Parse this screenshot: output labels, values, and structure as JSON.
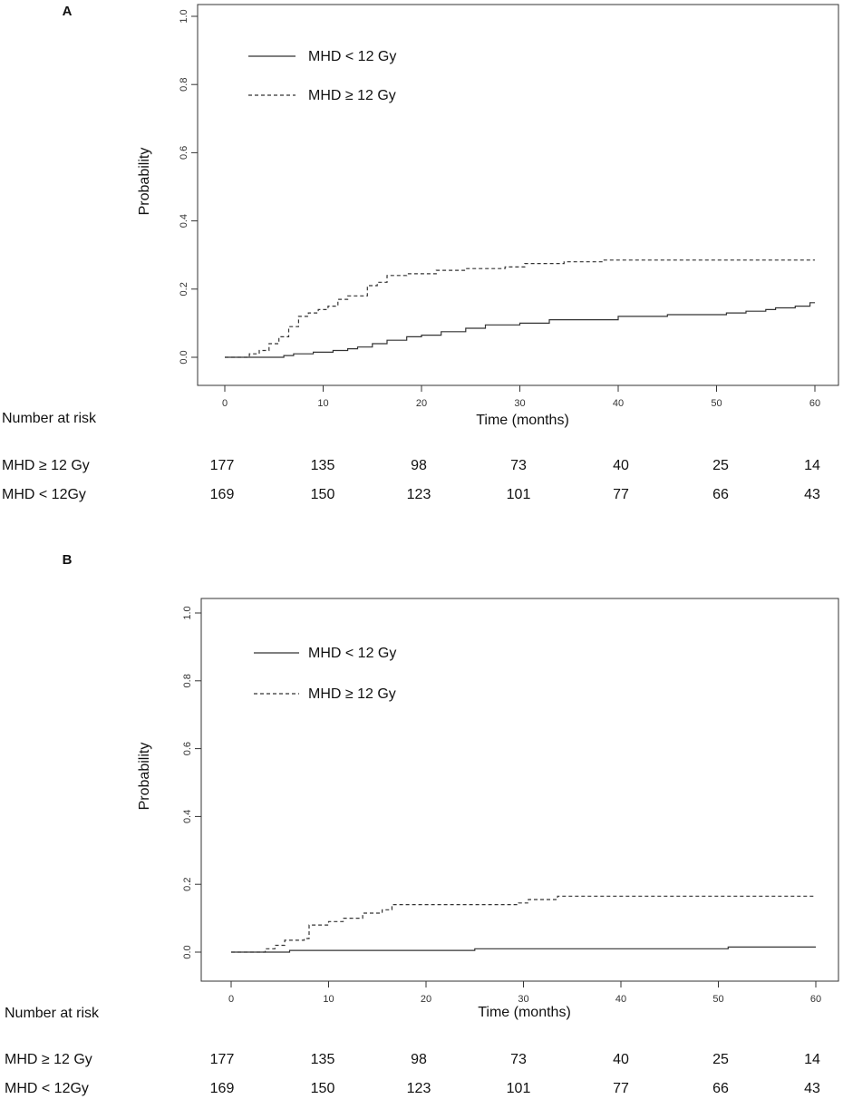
{
  "chart_data": [
    {
      "type": "line",
      "panel_label": "A",
      "xlabel": "Time (months)",
      "ylabel": "Probability",
      "xlim": [
        0,
        60
      ],
      "ylim": [
        0,
        1
      ],
      "xticks": [
        "0",
        "10",
        "20",
        "30",
        "40",
        "50",
        "60"
      ],
      "yticks": [
        "0.0",
        "0.2",
        "0.4",
        "0.6",
        "0.8",
        "1.0"
      ],
      "legend_position": "top-left",
      "series": [
        {
          "name": "MHD < 12 Gy",
          "style": "solid",
          "x": [
            0,
            6,
            7,
            9,
            11,
            12.5,
            13.5,
            15,
            16.5,
            18.5,
            20,
            22,
            24.5,
            26.5,
            30,
            33,
            40,
            45,
            51,
            53,
            55,
            56,
            58,
            59.5,
            60
          ],
          "y": [
            0.0,
            0.005,
            0.01,
            0.015,
            0.02,
            0.025,
            0.03,
            0.04,
            0.05,
            0.06,
            0.065,
            0.075,
            0.085,
            0.095,
            0.1,
            0.11,
            0.12,
            0.125,
            0.13,
            0.135,
            0.14,
            0.145,
            0.15,
            0.16,
            0.16
          ]
        },
        {
          "name": "MHD ≥ 12 Gy",
          "style": "dashed",
          "x": [
            0,
            2.5,
            3.5,
            4.5,
            5.5,
            6.5,
            7.5,
            8.5,
            9.5,
            10.5,
            11.5,
            12.5,
            14.5,
            15.5,
            16.5,
            18.5,
            21.5,
            24.5,
            28.5,
            30.5,
            34.5,
            38.5,
            60
          ],
          "y": [
            0.0,
            0.01,
            0.02,
            0.04,
            0.06,
            0.09,
            0.12,
            0.13,
            0.14,
            0.15,
            0.17,
            0.18,
            0.21,
            0.22,
            0.24,
            0.245,
            0.255,
            0.26,
            0.265,
            0.275,
            0.28,
            0.285,
            0.285
          ]
        }
      ],
      "risk_table": {
        "title": "Number at risk",
        "rows": [
          {
            "label": "MHD ≥ 12 Gy",
            "values": [
              "177",
              "135",
              "98",
              "73",
              "40",
              "25",
              "14"
            ]
          },
          {
            "label": "MHD < 12Gy",
            "values": [
              "169",
              "150",
              "123",
              "101",
              "77",
              "66",
              "43"
            ]
          }
        ]
      }
    },
    {
      "type": "line",
      "panel_label": "B",
      "xlabel": "Time (months)",
      "ylabel": "Probability",
      "xlim": [
        0,
        60
      ],
      "ylim": [
        0,
        1
      ],
      "xticks": [
        "0",
        "10",
        "20",
        "30",
        "40",
        "50",
        "60"
      ],
      "yticks": [
        "0.0",
        "0.2",
        "0.4",
        "0.6",
        "0.8",
        "1.0"
      ],
      "legend_position": "top-left",
      "series": [
        {
          "name": "MHD < 12 Gy",
          "style": "solid",
          "x": [
            0,
            6,
            25,
            51,
            60
          ],
          "y": [
            0.0,
            0.005,
            0.01,
            0.015,
            0.015
          ]
        },
        {
          "name": "MHD ≥ 12 Gy",
          "style": "dashed",
          "x": [
            0,
            3.5,
            4.5,
            5.5,
            7.5,
            8,
            10,
            11.5,
            13.5,
            15.5,
            16.5,
            29.5,
            30.5,
            33.5,
            60
          ],
          "y": [
            0.0,
            0.01,
            0.02,
            0.035,
            0.04,
            0.08,
            0.09,
            0.1,
            0.115,
            0.125,
            0.14,
            0.145,
            0.155,
            0.165,
            0.165
          ]
        }
      ],
      "risk_table": {
        "title": "Number at risk",
        "rows": [
          {
            "label": "MHD ≥ 12 Gy",
            "values": [
              "177",
              "135",
              "98",
              "73",
              "40",
              "25",
              "14"
            ]
          },
          {
            "label": "MHD < 12Gy",
            "values": [
              "169",
              "150",
              "123",
              "101",
              "77",
              "66",
              "43"
            ]
          }
        ]
      }
    }
  ]
}
